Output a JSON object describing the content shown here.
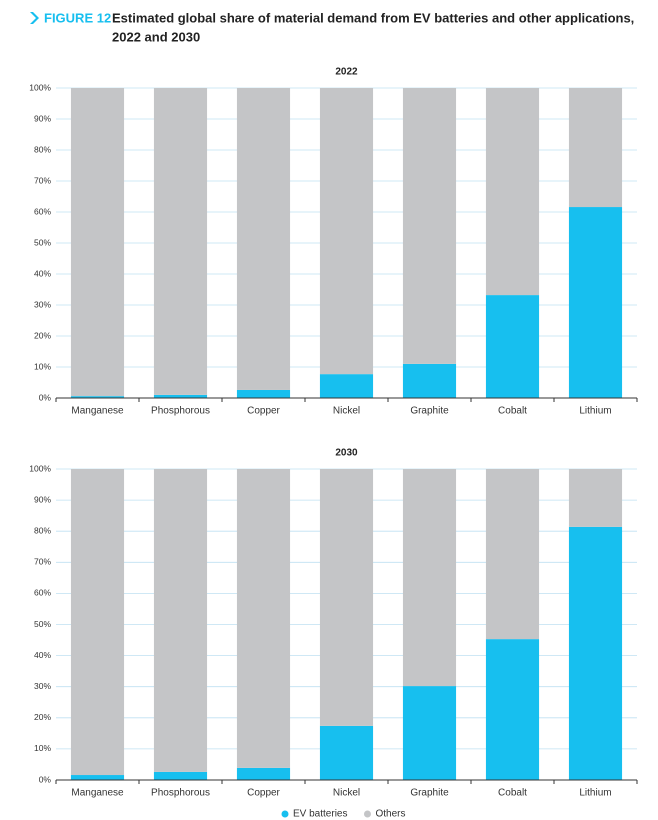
{
  "header": {
    "figure_label": "FIGURE 12",
    "title_lines": [
      "Estimated global share of material demand from EV batteries and other applications,",
      "2022 and 2030"
    ]
  },
  "chart_data": [
    {
      "type": "bar",
      "stacked": true,
      "title": "2022",
      "categories": [
        "Manganese",
        "Phosphorous",
        "Copper",
        "Nickel",
        "Graphite",
        "Cobalt",
        "Lithium"
      ],
      "series": [
        {
          "name": "EV batteries",
          "color": "#17bfef",
          "values": [
            0.6,
            1,
            2.6,
            7.7,
            11,
            33.2,
            61.6
          ]
        },
        {
          "name": "Others",
          "color": "#c4c5c7",
          "values": [
            99.4,
            99,
            97.4,
            92.3,
            89,
            66.8,
            38.4
          ]
        }
      ],
      "ylim": [
        0,
        100
      ],
      "yticks": [
        {
          "value": 0,
          "label": "0%"
        },
        {
          "value": 10,
          "label": "10%"
        },
        {
          "value": 20,
          "label": "20%"
        },
        {
          "value": 30,
          "label": "30%"
        },
        {
          "value": 40,
          "label": "40%"
        },
        {
          "value": 50,
          "label": "50%"
        },
        {
          "value": 60,
          "label": "60%"
        },
        {
          "value": 70,
          "label": "70%"
        },
        {
          "value": 80,
          "label": "80%"
        },
        {
          "value": 90,
          "label": "90%"
        },
        {
          "value": 100,
          "label": "100%"
        }
      ],
      "grid": true
    },
    {
      "type": "bar",
      "stacked": true,
      "title": "2030",
      "categories": [
        "Manganese",
        "Phosphorous",
        "Copper",
        "Nickel",
        "Graphite",
        "Cobalt",
        "Lithium"
      ],
      "series": [
        {
          "name": "EV batteries",
          "color": "#17bfef",
          "values": [
            1.6,
            2.6,
            3.9,
            17.4,
            30.2,
            45.3,
            81.4
          ]
        },
        {
          "name": "Others",
          "color": "#c4c5c7",
          "values": [
            98.4,
            97.4,
            96.1,
            82.6,
            69.8,
            54.7,
            18.6
          ]
        }
      ],
      "ylim": [
        0,
        100
      ],
      "yticks": [
        {
          "value": 0,
          "label": "0%"
        },
        {
          "value": 10,
          "label": "10%"
        },
        {
          "value": 20,
          "label": "20%"
        },
        {
          "value": 30,
          "label": "30%"
        },
        {
          "value": 40,
          "label": "40%"
        },
        {
          "value": 50,
          "label": "50%"
        },
        {
          "value": 60,
          "label": "60%"
        },
        {
          "value": 70,
          "label": "70%"
        },
        {
          "value": 80,
          "label": "80%"
        },
        {
          "value": 90,
          "label": "90%"
        },
        {
          "value": 100,
          "label": "100%"
        }
      ],
      "grid": true
    }
  ],
  "legend_position": "bottom"
}
